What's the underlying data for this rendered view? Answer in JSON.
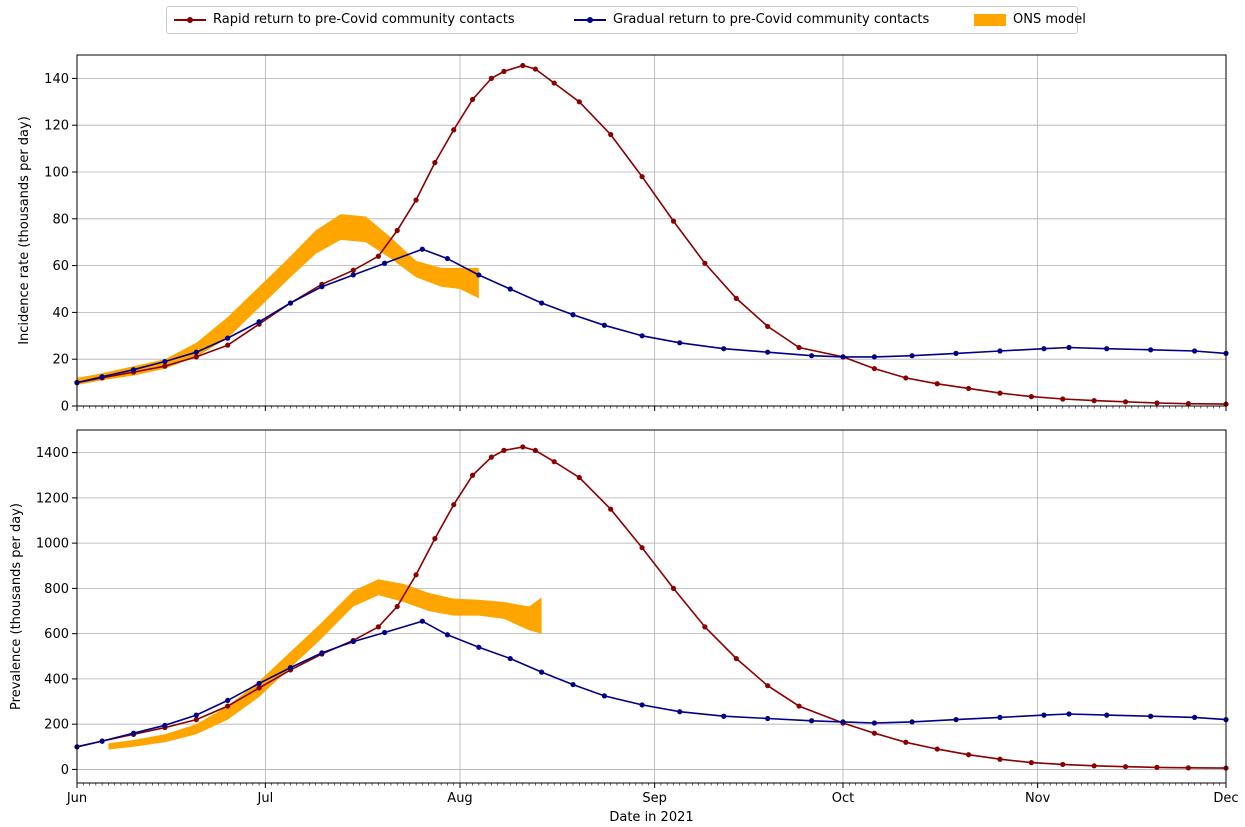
{
  "chart_data": {
    "type": "line",
    "xlabel": "Date in 2021",
    "x_range": [
      "2021-06-01",
      "2021-12-01"
    ],
    "x_ticks": [
      {
        "date": "2021-06-01",
        "label": "Jun"
      },
      {
        "date": "2021-07-01",
        "label": "Jul"
      },
      {
        "date": "2021-08-01",
        "label": "Aug"
      },
      {
        "date": "2021-09-01",
        "label": "Sep"
      },
      {
        "date": "2021-10-01",
        "label": "Oct"
      },
      {
        "date": "2021-11-01",
        "label": "Nov"
      },
      {
        "date": "2021-12-01",
        "label": "Dec"
      }
    ],
    "grid": true,
    "legend_position": "top-center",
    "legend": [
      {
        "label": "Rapid return to pre-Covid community contacts",
        "color": "#8b0000",
        "kind": "line-marker"
      },
      {
        "label": "Gradual return to pre-Covid community contacts",
        "color": "#00008b",
        "kind": "line-marker"
      },
      {
        "label": "ONS model",
        "color": "#ffa500",
        "kind": "band"
      }
    ],
    "panels": [
      {
        "ylabel": "Incidence rate (thousands per day)",
        "ylim": [
          0,
          150
        ],
        "yticks": [
          0,
          20,
          40,
          60,
          80,
          100,
          120,
          140
        ],
        "series": [
          {
            "name": "Rapid return to pre-Covid community contacts",
            "color": "#8b0000",
            "dates": [
              "2021-06-01",
              "2021-06-05",
              "2021-06-10",
              "2021-06-15",
              "2021-06-20",
              "2021-06-25",
              "2021-06-30",
              "2021-07-05",
              "2021-07-10",
              "2021-07-15",
              "2021-07-19",
              "2021-07-22",
              "2021-07-25",
              "2021-07-28",
              "2021-07-31",
              "2021-08-03",
              "2021-08-06",
              "2021-08-08",
              "2021-08-11",
              "2021-08-13",
              "2021-08-16",
              "2021-08-20",
              "2021-08-25",
              "2021-08-30",
              "2021-09-04",
              "2021-09-09",
              "2021-09-14",
              "2021-09-19",
              "2021-09-24",
              "2021-10-01",
              "2021-10-06",
              "2021-10-11",
              "2021-10-16",
              "2021-10-21",
              "2021-10-26",
              "2021-10-31",
              "2021-11-05",
              "2021-11-10",
              "2021-11-15",
              "2021-11-20",
              "2021-11-25",
              "2021-12-01"
            ],
            "values": [
              10,
              12,
              14.5,
              17,
              21,
              26,
              35,
              44,
              52,
              58,
              64,
              75,
              88,
              104,
              118,
              131,
              140,
              143,
              145.5,
              144,
              138,
              130,
              116,
              98,
              79,
              61,
              46,
              34,
              25,
              21,
              16,
              12,
              9.5,
              7.5,
              5.5,
              4,
              3,
              2.3,
              1.8,
              1.3,
              1,
              0.8
            ]
          },
          {
            "name": "Gradual return to pre-Covid community contacts",
            "color": "#00008b",
            "dates": [
              "2021-06-01",
              "2021-06-05",
              "2021-06-10",
              "2021-06-15",
              "2021-06-20",
              "2021-06-25",
              "2021-06-30",
              "2021-07-05",
              "2021-07-10",
              "2021-07-15",
              "2021-07-20",
              "2021-07-26",
              "2021-07-30",
              "2021-08-04",
              "2021-08-09",
              "2021-08-14",
              "2021-08-19",
              "2021-08-24",
              "2021-08-30",
              "2021-09-05",
              "2021-09-12",
              "2021-09-19",
              "2021-09-26",
              "2021-10-01",
              "2021-10-06",
              "2021-10-12",
              "2021-10-19",
              "2021-10-26",
              "2021-11-02",
              "2021-11-06",
              "2021-11-12",
              "2021-11-19",
              "2021-11-26",
              "2021-12-01"
            ],
            "values": [
              10,
              12.5,
              15.5,
              19,
              23,
              29,
              36,
              44,
              51,
              56,
              61,
              67,
              63,
              56,
              50,
              44,
              39,
              34.5,
              30,
              27,
              24.5,
              23,
              21.5,
              21,
              21,
              21.5,
              22.5,
              23.5,
              24.5,
              25,
              24.5,
              24,
              23.5,
              22.5
            ]
          }
        ],
        "ons_band": {
          "dates": [
            "2021-06-01",
            "2021-06-05",
            "2021-06-10",
            "2021-06-15",
            "2021-06-20",
            "2021-06-25",
            "2021-06-30",
            "2021-07-05",
            "2021-07-09",
            "2021-07-13",
            "2021-07-17",
            "2021-07-21",
            "2021-07-25",
            "2021-07-29",
            "2021-08-01",
            "2021-08-04"
          ],
          "lower": [
            9,
            11,
            13,
            16,
            21,
            29,
            42,
            55,
            65,
            71,
            70,
            63,
            55,
            51,
            50,
            46
          ],
          "upper": [
            12,
            14,
            17,
            20,
            27,
            38,
            51,
            64,
            75,
            82,
            81,
            72,
            62,
            59,
            59,
            59
          ]
        }
      },
      {
        "ylabel": "Prevalence (thousands per day)",
        "ylim": [
          -60,
          1500
        ],
        "yticks": [
          0,
          200,
          400,
          600,
          800,
          1000,
          1200,
          1400
        ],
        "series": [
          {
            "name": "Rapid return to pre-Covid community contacts",
            "color": "#8b0000",
            "dates": [
              "2021-06-01",
              "2021-06-05",
              "2021-06-10",
              "2021-06-15",
              "2021-06-20",
              "2021-06-25",
              "2021-06-30",
              "2021-07-05",
              "2021-07-10",
              "2021-07-15",
              "2021-07-19",
              "2021-07-22",
              "2021-07-25",
              "2021-07-28",
              "2021-07-31",
              "2021-08-03",
              "2021-08-06",
              "2021-08-08",
              "2021-08-11",
              "2021-08-13",
              "2021-08-16",
              "2021-08-20",
              "2021-08-25",
              "2021-08-30",
              "2021-09-04",
              "2021-09-09",
              "2021-09-14",
              "2021-09-19",
              "2021-09-24",
              "2021-10-01",
              "2021-10-06",
              "2021-10-11",
              "2021-10-16",
              "2021-10-21",
              "2021-10-26",
              "2021-10-31",
              "2021-11-05",
              "2021-11-10",
              "2021-11-15",
              "2021-11-20",
              "2021-11-25",
              "2021-12-01"
            ],
            "values": [
              100,
              125,
              155,
              185,
              220,
              280,
              360,
              440,
              510,
              570,
              630,
              720,
              860,
              1020,
              1170,
              1300,
              1380,
              1410,
              1425,
              1410,
              1360,
              1290,
              1150,
              980,
              800,
              630,
              490,
              370,
              280,
              205,
              160,
              120,
              90,
              65,
              45,
              30,
              22,
              16,
              12,
              9,
              7,
              6
            ]
          },
          {
            "name": "Gradual return to pre-Covid community contacts",
            "color": "#00008b",
            "dates": [
              "2021-06-01",
              "2021-06-05",
              "2021-06-10",
              "2021-06-15",
              "2021-06-20",
              "2021-06-25",
              "2021-06-30",
              "2021-07-05",
              "2021-07-10",
              "2021-07-15",
              "2021-07-20",
              "2021-07-26",
              "2021-07-30",
              "2021-08-04",
              "2021-08-09",
              "2021-08-14",
              "2021-08-19",
              "2021-08-24",
              "2021-08-30",
              "2021-09-05",
              "2021-09-12",
              "2021-09-19",
              "2021-09-26",
              "2021-10-01",
              "2021-10-06",
              "2021-10-12",
              "2021-10-19",
              "2021-10-26",
              "2021-11-02",
              "2021-11-06",
              "2021-11-12",
              "2021-11-19",
              "2021-11-26",
              "2021-12-01"
            ],
            "values": [
              100,
              125,
              160,
              195,
              240,
              305,
              380,
              450,
              515,
              565,
              605,
              655,
              595,
              540,
              490,
              430,
              375,
              325,
              285,
              255,
              235,
              225,
              215,
              210,
              205,
              210,
              220,
              230,
              240,
              245,
              240,
              235,
              230,
              220
            ]
          }
        ],
        "ons_band": {
          "dates": [
            "2021-06-06",
            "2021-06-10",
            "2021-06-15",
            "2021-06-20",
            "2021-06-25",
            "2021-06-30",
            "2021-07-05",
            "2021-07-10",
            "2021-07-15",
            "2021-07-19",
            "2021-07-23",
            "2021-07-27",
            "2021-07-31",
            "2021-08-04",
            "2021-08-08",
            "2021-08-12",
            "2021-08-14"
          ],
          "lower": [
            88,
            100,
            120,
            155,
            220,
            320,
            450,
            580,
            720,
            770,
            740,
            700,
            680,
            680,
            665,
            615,
            600
          ],
          "upper": [
            115,
            130,
            155,
            200,
            280,
            390,
            520,
            650,
            790,
            840,
            820,
            780,
            755,
            750,
            740,
            720,
            760
          ]
        }
      }
    ]
  }
}
